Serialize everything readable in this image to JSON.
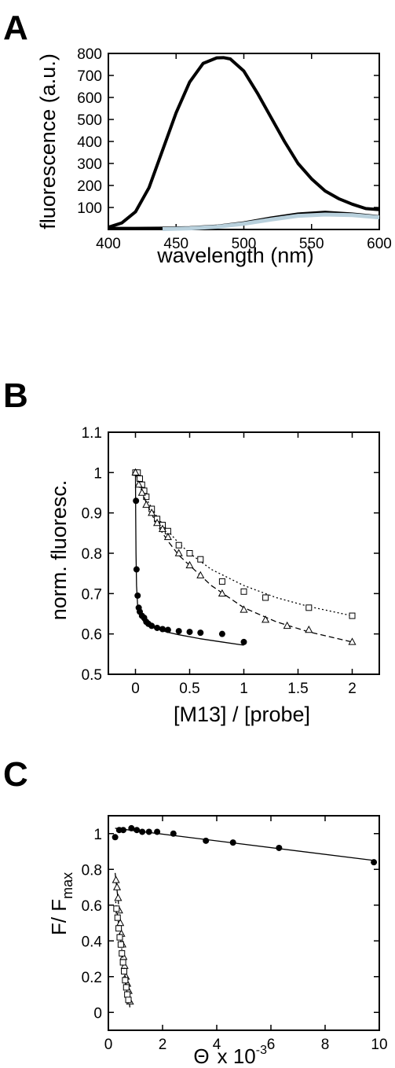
{
  "chart_data": [
    {
      "panel": "A",
      "type": "line",
      "xlabel": "wavelength (nm)",
      "ylabel": "fluorescence (a.u.)",
      "xlim": [
        400,
        600
      ],
      "ylim": [
        0,
        800
      ],
      "xticks": [
        400,
        450,
        500,
        550,
        600
      ],
      "yticks": [
        100,
        200,
        300,
        400,
        500,
        600,
        700,
        800
      ],
      "series": [
        {
          "color": "#000000",
          "x": [
            400,
            410,
            420,
            430,
            440,
            450,
            460,
            470,
            480,
            485,
            490,
            500,
            510,
            520,
            530,
            540,
            550,
            560,
            570,
            580,
            590,
            600
          ],
          "y": [
            10,
            30,
            80,
            190,
            360,
            530,
            670,
            755,
            780,
            781,
            775,
            720,
            620,
            510,
            400,
            300,
            230,
            175,
            140,
            115,
            95,
            90
          ]
        },
        {
          "color": "#000000",
          "x": [
            400,
            420,
            440,
            460,
            480,
            500,
            520,
            540,
            560,
            580,
            600
          ],
          "y": [
            5,
            5,
            6,
            8,
            15,
            30,
            52,
            70,
            78,
            70,
            58
          ]
        },
        {
          "color": "#b8d0dc",
          "x": [
            440,
            460,
            480,
            500,
            520,
            540,
            560,
            580,
            600
          ],
          "y": [
            2,
            5,
            12,
            26,
            45,
            62,
            68,
            65,
            55
          ]
        }
      ]
    },
    {
      "panel": "B",
      "type": "scatter",
      "xlabel": "[M13] / [probe]",
      "ylabel": "norm. fluoresc.",
      "xlim": [
        -0.25,
        2.25
      ],
      "ylim": [
        0.5,
        1.1
      ],
      "xticks": [
        0,
        0.5,
        1,
        1.5,
        2
      ],
      "yticks": [
        0.5,
        0.6,
        0.7,
        0.8,
        0.9,
        1,
        1.1
      ],
      "series": [
        {
          "marker": "filled-circle",
          "line": "solid",
          "x": [
            0,
            0.005,
            0.01,
            0.02,
            0.03,
            0.04,
            0.06,
            0.08,
            0.1,
            0.12,
            0.15,
            0.2,
            0.25,
            0.3,
            0.4,
            0.5,
            0.6,
            0.8,
            1.0
          ],
          "y": [
            1.0,
            0.93,
            0.76,
            0.695,
            0.665,
            0.655,
            0.645,
            0.64,
            0.63,
            0.625,
            0.62,
            0.615,
            0.612,
            0.61,
            0.607,
            0.605,
            0.603,
            0.6,
            0.58
          ],
          "fit_x": [
            0,
            0.002,
            0.005,
            0.01,
            0.02,
            0.04,
            0.07,
            0.1,
            0.15,
            0.2,
            0.3,
            0.4,
            0.6,
            0.8,
            1.0
          ],
          "fit_y": [
            1.0,
            0.9,
            0.8,
            0.72,
            0.67,
            0.645,
            0.633,
            0.625,
            0.617,
            0.612,
            0.604,
            0.598,
            0.588,
            0.58,
            0.572
          ]
        },
        {
          "marker": "open-square",
          "line": "dotted",
          "x": [
            0,
            0.02,
            0.04,
            0.06,
            0.08,
            0.1,
            0.15,
            0.2,
            0.25,
            0.3,
            0.4,
            0.5,
            0.6,
            0.8,
            1.0,
            1.2,
            1.6,
            2.0
          ],
          "y": [
            1.0,
            1.0,
            0.985,
            0.97,
            0.955,
            0.94,
            0.91,
            0.885,
            0.87,
            0.855,
            0.82,
            0.8,
            0.785,
            0.73,
            0.705,
            0.69,
            0.665,
            0.645
          ],
          "fit_x": [
            0,
            0.05,
            0.1,
            0.2,
            0.3,
            0.4,
            0.5,
            0.7,
            1.0,
            1.3,
            1.6,
            2.0
          ],
          "fit_y": [
            1.0,
            0.965,
            0.935,
            0.89,
            0.855,
            0.825,
            0.8,
            0.76,
            0.72,
            0.69,
            0.668,
            0.645
          ]
        },
        {
          "marker": "open-triangle",
          "line": "dashed",
          "x": [
            0,
            0.03,
            0.06,
            0.1,
            0.15,
            0.2,
            0.25,
            0.3,
            0.4,
            0.5,
            0.6,
            0.8,
            1.0,
            1.2,
            1.4,
            1.6,
            2.0
          ],
          "y": [
            1.0,
            0.97,
            0.95,
            0.92,
            0.9,
            0.875,
            0.86,
            0.84,
            0.8,
            0.77,
            0.745,
            0.7,
            0.66,
            0.635,
            0.62,
            0.61,
            0.58
          ],
          "fit_x": [
            0,
            0.05,
            0.1,
            0.2,
            0.3,
            0.4,
            0.5,
            0.7,
            1.0,
            1.3,
            1.6,
            2.0
          ],
          "fit_y": [
            1.0,
            0.96,
            0.925,
            0.87,
            0.83,
            0.795,
            0.77,
            0.72,
            0.665,
            0.63,
            0.605,
            0.58
          ]
        }
      ]
    },
    {
      "panel": "C",
      "type": "scatter",
      "xlabel_main": "Θ",
      "xlabel_suffix": "x 10",
      "xlabel_exp": "-3",
      "ylabel_main": "F/  F",
      "ylabel_sub": "max",
      "xlim": [
        0,
        10
      ],
      "ylim": [
        -0.1,
        1.1
      ],
      "xticks": [
        0,
        2,
        4,
        6,
        8,
        10
      ],
      "yticks": [
        0,
        0.2,
        0.4,
        0.6,
        0.8,
        1
      ],
      "series": [
        {
          "marker": "filled-circle",
          "line": "solid",
          "x": [
            0.25,
            0.4,
            0.55,
            0.85,
            1.05,
            1.25,
            1.5,
            1.8,
            2.4,
            3.6,
            4.6,
            6.3,
            9.8
          ],
          "y": [
            0.98,
            1.02,
            1.02,
            1.03,
            1.02,
            1.01,
            1.01,
            1.01,
            1.0,
            0.96,
            0.95,
            0.92,
            0.84
          ],
          "fit_x": [
            0.25,
            9.8
          ],
          "fit_y": [
            1.03,
            0.85
          ]
        },
        {
          "marker": "open-triangle",
          "line": "dashed",
          "x": [
            0.28,
            0.32,
            0.36,
            0.4,
            0.44,
            0.48,
            0.52,
            0.56,
            0.6,
            0.65,
            0.7,
            0.75,
            0.8
          ],
          "y": [
            0.74,
            0.7,
            0.64,
            0.57,
            0.5,
            0.44,
            0.38,
            0.31,
            0.26,
            0.2,
            0.16,
            0.12,
            0.06
          ],
          "fit_x": [
            0.25,
            0.8
          ],
          "fit_y": [
            0.78,
            0.02
          ]
        },
        {
          "marker": "open-square",
          "line": "dotted",
          "x": [
            0.3,
            0.34,
            0.38,
            0.42,
            0.46,
            0.5,
            0.54,
            0.58,
            0.62,
            0.66,
            0.7,
            0.74
          ],
          "y": [
            0.58,
            0.53,
            0.47,
            0.42,
            0.38,
            0.33,
            0.28,
            0.23,
            0.18,
            0.14,
            0.1,
            0.07
          ],
          "fit_x": [
            0.27,
            0.75
          ],
          "fit_y": [
            0.62,
            0.05
          ]
        }
      ]
    }
  ],
  "panels": {
    "a": "A",
    "b": "B",
    "c": "C"
  }
}
